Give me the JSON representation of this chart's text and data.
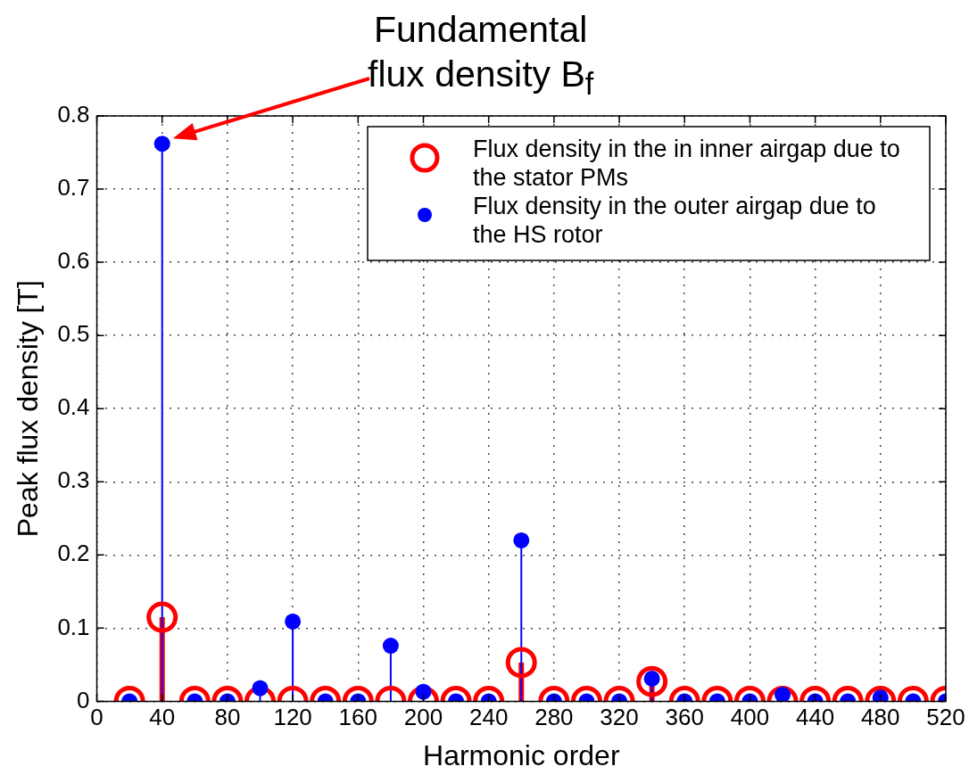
{
  "chart_data": {
    "type": "lollipop",
    "xlabel": "Harmonic order",
    "ylabel": "Peak flux density [T]",
    "x": [
      20,
      40,
      60,
      80,
      100,
      120,
      140,
      160,
      180,
      200,
      220,
      240,
      260,
      280,
      300,
      320,
      340,
      360,
      380,
      400,
      420,
      440,
      460,
      480,
      500,
      520
    ],
    "series": [
      {
        "name": "Flux density in the in inner airgap due to the stator PMs",
        "color": "#ff0000",
        "values": [
          0,
          0.115,
          0,
          0,
          0,
          0,
          0,
          0,
          0,
          0,
          0,
          0,
          0.053,
          0,
          0,
          0,
          0.027,
          0,
          0,
          0,
          0,
          0,
          0,
          0,
          0,
          0
        ]
      },
      {
        "name": "Flux density in the outer airgap due to the HS rotor",
        "color": "#0000ff",
        "values": [
          0,
          0.762,
          0,
          0,
          0.018,
          0.109,
          0,
          0,
          0.076,
          0.013,
          0,
          0,
          0.22,
          0,
          0,
          0,
          0.031,
          0,
          0,
          0,
          0.009,
          0,
          0,
          0.005,
          0,
          0
        ]
      }
    ],
    "xlim": [
      0,
      520
    ],
    "xticks": [
      0,
      40,
      80,
      120,
      160,
      200,
      240,
      280,
      320,
      360,
      400,
      440,
      480,
      520
    ],
    "ylim": [
      0,
      0.8
    ],
    "yticks": [
      0,
      0.1,
      0.2,
      0.3,
      0.4,
      0.5,
      0.6,
      0.7,
      0.8
    ],
    "grid": true,
    "legend": "top right",
    "marker": "circle",
    "annotations": [
      "Fundamental\nflux density B$_{f}$"
    ]
  }
}
